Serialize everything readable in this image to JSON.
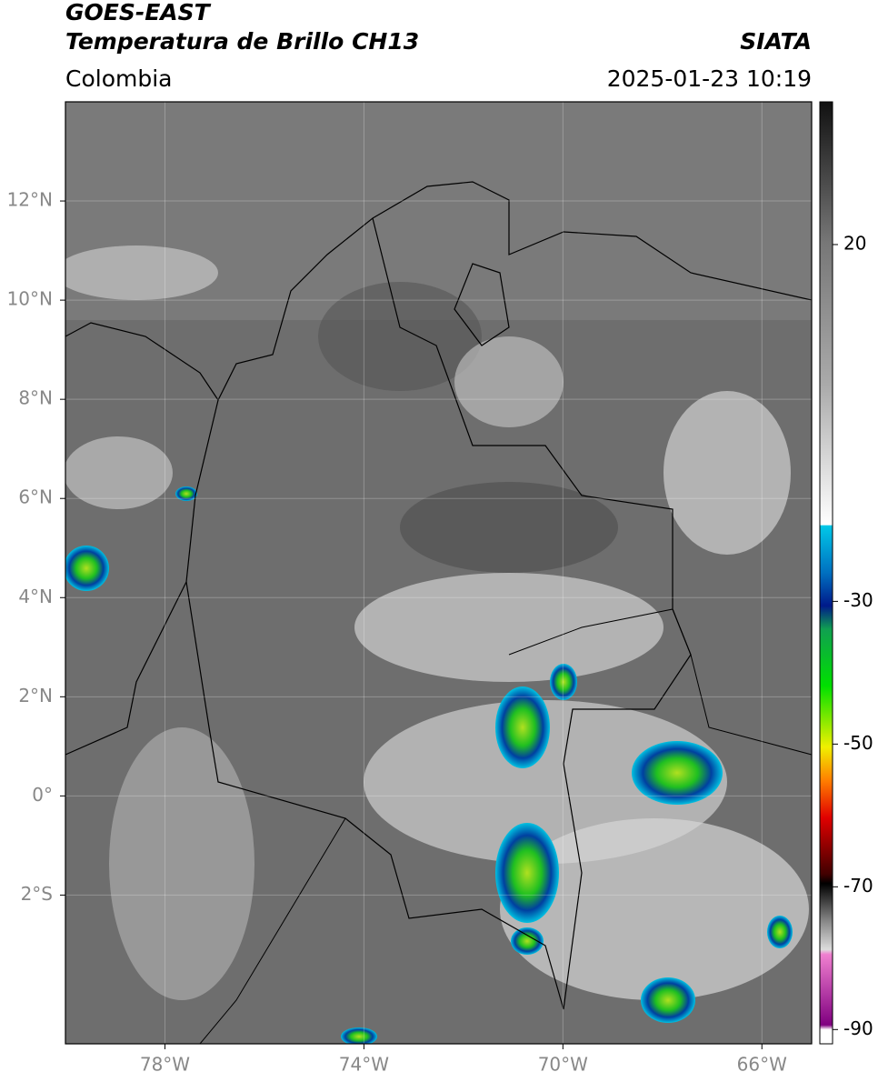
{
  "header": {
    "title": "GOES-EAST",
    "subtitle": "Temperatura de Brillo CH13",
    "region": "Colombia",
    "source": "SIATA",
    "timestamp": "2025-01-23 10:19"
  },
  "map": {
    "xlim": [
      -80,
      -65
    ],
    "ylim": [
      -5,
      14
    ],
    "xticks": [
      {
        "value": -78,
        "label": "78°W"
      },
      {
        "value": -74,
        "label": "74°W"
      },
      {
        "value": -70,
        "label": "70°W"
      },
      {
        "value": -66,
        "label": "66°W"
      }
    ],
    "yticks": [
      {
        "value": 12,
        "label": "12°N"
      },
      {
        "value": 10,
        "label": "10°N"
      },
      {
        "value": 8,
        "label": "8°N"
      },
      {
        "value": 6,
        "label": "6°N"
      },
      {
        "value": 4,
        "label": "4°N"
      },
      {
        "value": 2,
        "label": "2°N"
      },
      {
        "value": 0,
        "label": "0°"
      },
      {
        "value": -2,
        "label": "2°S"
      }
    ],
    "grid": true
  },
  "colorbar": {
    "lim": [
      -92,
      40
    ],
    "ticks": [
      20,
      -30,
      -50,
      -70,
      -90
    ]
  }
}
